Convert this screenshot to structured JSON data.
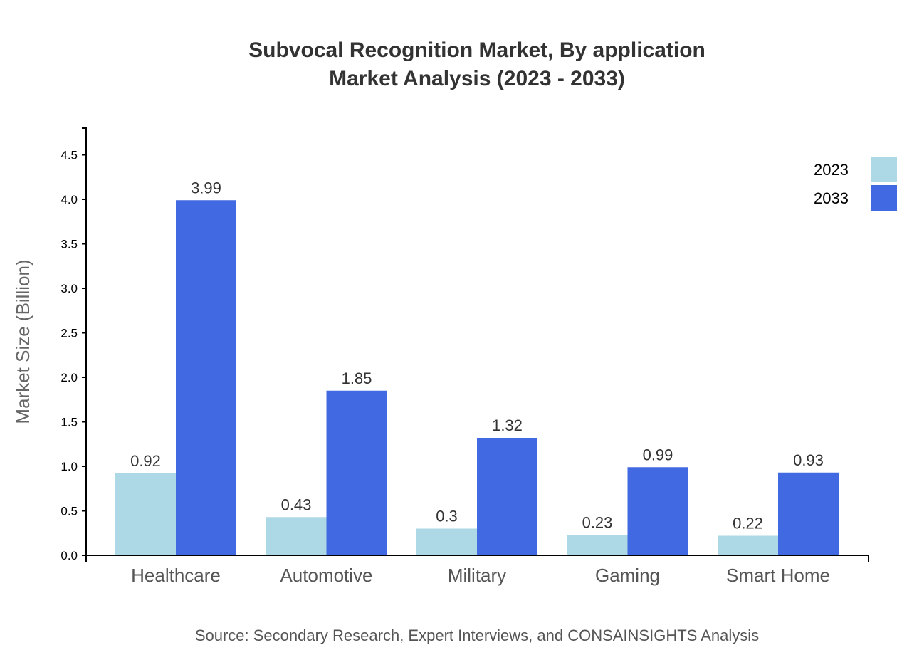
{
  "chart_data": {
    "type": "bar",
    "title": "Subvocal Recognition Market, By application",
    "subtitle": "Market Analysis (2023 - 2033)",
    "xlabel": "",
    "ylabel": "Market Size (Billion)",
    "categories": [
      "Healthcare",
      "Automotive",
      "Military",
      "Gaming",
      "Smart Home"
    ],
    "series": [
      {
        "name": "2023",
        "color": "#ADD8E6",
        "values": [
          0.92,
          0.43,
          0.3,
          0.23,
          0.22
        ]
      },
      {
        "name": "2033",
        "color": "#4169E1",
        "values": [
          3.99,
          1.85,
          1.32,
          0.99,
          0.93
        ]
      }
    ],
    "ylim": [
      0,
      4.8
    ],
    "yticks": [
      "0.0",
      "0.5",
      "1.0",
      "1.5",
      "2.0",
      "2.5",
      "3.0",
      "3.5",
      "4.0",
      "4.5"
    ],
    "grid": false,
    "legend_position": "top-right",
    "source": "Source: Secondary Research, Expert Interviews, and CONSAINSIGHTS Analysis"
  }
}
